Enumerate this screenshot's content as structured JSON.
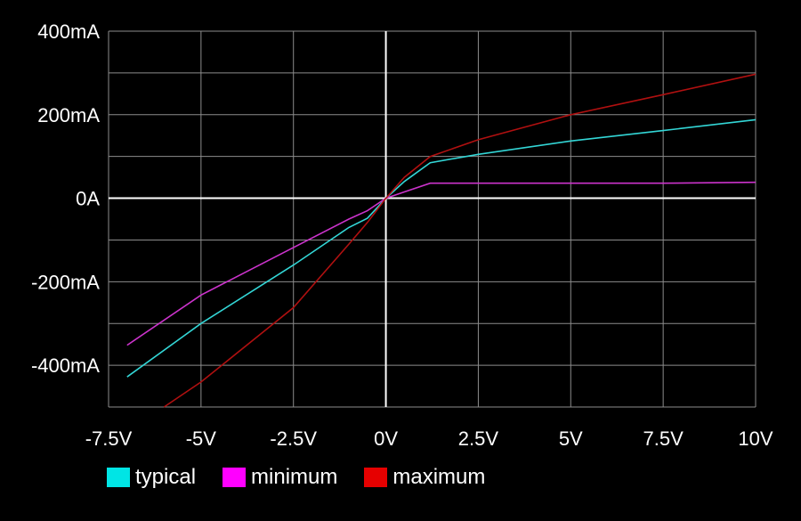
{
  "chart_data": {
    "type": "line",
    "title": "",
    "xlabel": "",
    "ylabel": "",
    "xlim": [
      -7.5,
      10
    ],
    "ylim": [
      -500,
      400
    ],
    "x_ticks": [
      {
        "value": -7.5,
        "label": "-7.5V"
      },
      {
        "value": -5,
        "label": "-5V"
      },
      {
        "value": -2.5,
        "label": "-2.5V"
      },
      {
        "value": 0,
        "label": "0V"
      },
      {
        "value": 2.5,
        "label": "2.5V"
      },
      {
        "value": 5,
        "label": "5V"
      },
      {
        "value": 7.5,
        "label": "7.5V"
      },
      {
        "value": 10,
        "label": "10V"
      }
    ],
    "x_gridlines": [
      -5,
      -2.5,
      0,
      2.5,
      5,
      7.5,
      10
    ],
    "y_ticks": [
      {
        "value": 400,
        "label": "400mA"
      },
      {
        "value": 200,
        "label": "200mA"
      },
      {
        "value": 0,
        "label": "0A"
      },
      {
        "value": -200,
        "label": "-200mA"
      },
      {
        "value": -400,
        "label": "-400mA"
      }
    ],
    "y_gridlines": [
      400,
      300,
      200,
      100,
      0,
      -100,
      -200,
      -300,
      -400,
      -500
    ],
    "grid": true,
    "legend_position": "bottom-left",
    "series": [
      {
        "name": "typical",
        "color": "#33d6d6",
        "points": [
          [
            -7,
            -428
          ],
          [
            -5,
            -300
          ],
          [
            -2.5,
            -160
          ],
          [
            -1,
            -70
          ],
          [
            -0.5,
            -48
          ],
          [
            0,
            0
          ],
          [
            0.5,
            40
          ],
          [
            1.2,
            85
          ],
          [
            2.5,
            105
          ],
          [
            5,
            137
          ],
          [
            7.5,
            162
          ],
          [
            10,
            188
          ]
        ]
      },
      {
        "name": "minimum",
        "color": "#cc33cc",
        "points": [
          [
            -7,
            -352
          ],
          [
            -5,
            -232
          ],
          [
            -2.5,
            -118
          ],
          [
            -1,
            -50
          ],
          [
            -0.5,
            -30
          ],
          [
            0,
            0
          ],
          [
            0.5,
            15
          ],
          [
            1.2,
            36
          ],
          [
            2.5,
            36
          ],
          [
            5,
            36
          ],
          [
            7.5,
            36
          ],
          [
            10,
            38
          ]
        ]
      },
      {
        "name": "maximum",
        "color": "#b01010",
        "points": [
          [
            -6,
            -500
          ],
          [
            -5,
            -440
          ],
          [
            -2.5,
            -262
          ],
          [
            -1,
            -110
          ],
          [
            -0.5,
            -58
          ],
          [
            0,
            0
          ],
          [
            0.5,
            50
          ],
          [
            1.2,
            100
          ],
          [
            2.5,
            140
          ],
          [
            5,
            200
          ],
          [
            7.5,
            248
          ],
          [
            10,
            297
          ]
        ]
      }
    ]
  },
  "legend": {
    "items": [
      {
        "label": "typical",
        "color": "#00e5e5"
      },
      {
        "label": "minimum",
        "color": "#ff00ff"
      },
      {
        "label": "maximum",
        "color": "#e60000"
      }
    ]
  }
}
